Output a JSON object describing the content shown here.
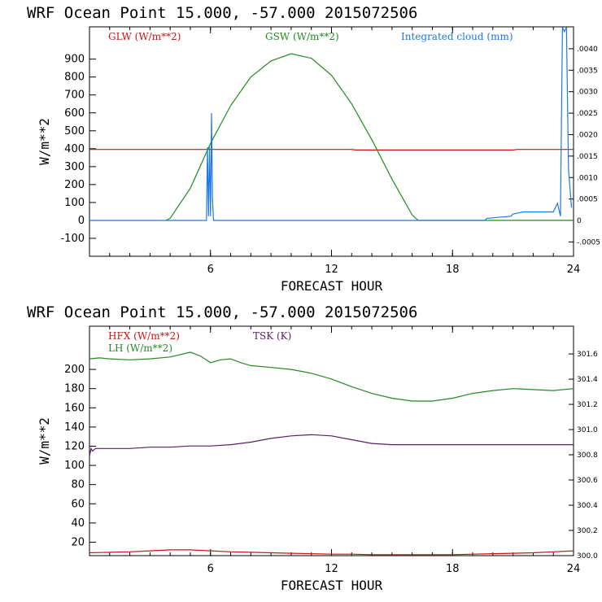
{
  "chart_data": [
    {
      "type": "line",
      "title": "WRF   Ocean Point   15.000, -57.000  2015072506",
      "xlabel": "FORECAST HOUR",
      "ylabel": "W/m**2",
      "xlim": [
        0,
        24
      ],
      "ylim": [
        -200,
        1080
      ],
      "xticks": [
        "6",
        "12",
        "18",
        "24"
      ],
      "yticks": [
        "-100",
        "0",
        "100",
        "200",
        "300",
        "400",
        "500",
        "600",
        "700",
        "800",
        "900"
      ],
      "y2_range": [
        -0.000833,
        0.00451
      ],
      "y2ticks": [
        "-.0005",
        "0",
        ".0005",
        ".0010",
        ".0015",
        ".0020",
        ".0025",
        ".0030",
        ".0035",
        ".0040"
      ],
      "series": [
        {
          "name": "GLW (W/m**2)",
          "color": "#c81414",
          "axis": "left",
          "x": [
            0,
            13,
            13.2,
            21,
            21.2,
            24
          ],
          "y": [
            396,
            396,
            393,
            393,
            396,
            396
          ]
        },
        {
          "name": "GSW (W/m**2)",
          "color": "#228b22",
          "axis": "left",
          "x": [
            3.8,
            4,
            5,
            6,
            7,
            8,
            9,
            10,
            11,
            12,
            13,
            14,
            15,
            16,
            16.3,
            24
          ],
          "y": [
            0,
            12,
            180,
            430,
            640,
            800,
            890,
            930,
            905,
            810,
            650,
            450,
            230,
            30,
            0,
            0
          ]
        },
        {
          "name": "Integrated cloud (mm)",
          "color": "#1e78e6",
          "axis": "right",
          "x": [
            0,
            5.8,
            5.85,
            5.9,
            5.95,
            6.0,
            6.05,
            6.1,
            6.15,
            19.6,
            19.7,
            20.9,
            21.0,
            21.5,
            22.0,
            22.5,
            23.0,
            23.2,
            23.35,
            23.45,
            23.55,
            23.65,
            23.75,
            23.9
          ],
          "y": [
            0,
            0,
            0.0017,
            0.0001,
            0.0017,
            0.0001,
            0.0025,
            0.0005,
            0,
            0,
            5e-05,
            0.0001,
            0.00015,
            0.0002,
            0.0002,
            0.0002,
            0.0002,
            0.0004,
            0.0001,
            0.0045,
            0.0044,
            0.0045,
            0.0012,
            0.0003
          ]
        }
      ]
    },
    {
      "type": "line",
      "title": "WRF   Ocean Point   15.000, -57.000  2015072506",
      "xlabel": "FORECAST HOUR",
      "ylabel": "W/m**2",
      "xlim": [
        0,
        24
      ],
      "ylim": [
        6,
        245
      ],
      "xticks": [
        "6",
        "12",
        "18",
        "24"
      ],
      "yticks": [
        "20",
        "40",
        "60",
        "80",
        "100",
        "120",
        "140",
        "160",
        "180",
        "200"
      ],
      "y2_range": [
        300.0,
        301.82
      ],
      "y2ticks": [
        "300.0",
        "300.2",
        "300.4",
        "300.6",
        "300.8",
        "301.0",
        "301.2",
        "301.4",
        "301.6"
      ],
      "series": [
        {
          "name": "HFX (W/m**2)",
          "color": "#c81414",
          "axis": "left",
          "x": [
            0,
            1,
            2,
            3,
            4,
            5,
            6,
            7,
            8,
            9,
            10,
            11,
            12,
            13,
            14,
            15,
            16,
            17,
            18,
            19,
            20,
            21,
            22,
            23,
            24
          ],
          "y": [
            9,
            9.5,
            10,
            11,
            12,
            12,
            11,
            10,
            9.5,
            9,
            8.5,
            8,
            7.5,
            7.5,
            7,
            7,
            7,
            7,
            7,
            7.5,
            8,
            8.5,
            9,
            10,
            11
          ]
        },
        {
          "name": "LH (W/m**2)",
          "color": "#228b22",
          "axis": "left",
          "x": [
            0,
            0.5,
            1,
            2,
            3,
            4,
            5,
            5.5,
            6,
            6.5,
            7,
            7.5,
            8,
            9,
            10,
            11,
            12,
            13,
            14,
            15,
            16,
            17,
            18,
            19,
            20,
            21,
            22,
            23,
            24
          ],
          "y": [
            211,
            212,
            211,
            210,
            211,
            213,
            218,
            214,
            207,
            210,
            211,
            207,
            204,
            202,
            200,
            196,
            190,
            182,
            175,
            170,
            167,
            167,
            170,
            175,
            178,
            180,
            179,
            178,
            180
          ]
        },
        {
          "name": "TSK (K)",
          "color": "#5a1e64",
          "axis": "right",
          "x": [
            0,
            0.08,
            0.15,
            0.3,
            1,
            2,
            3,
            4,
            5,
            6,
            7,
            8,
            9,
            10,
            11,
            12,
            13,
            14,
            15,
            16,
            17,
            18,
            19,
            20,
            21,
            22,
            23,
            24
          ],
          "y": [
            300.79,
            300.85,
            300.83,
            300.85,
            300.85,
            300.85,
            300.86,
            300.86,
            300.87,
            300.87,
            300.88,
            300.9,
            300.93,
            300.95,
            300.96,
            300.95,
            300.92,
            300.89,
            300.88,
            300.88,
            300.88,
            300.88,
            300.88,
            300.88,
            300.88,
            300.88,
            300.88,
            300.88
          ]
        }
      ]
    }
  ]
}
